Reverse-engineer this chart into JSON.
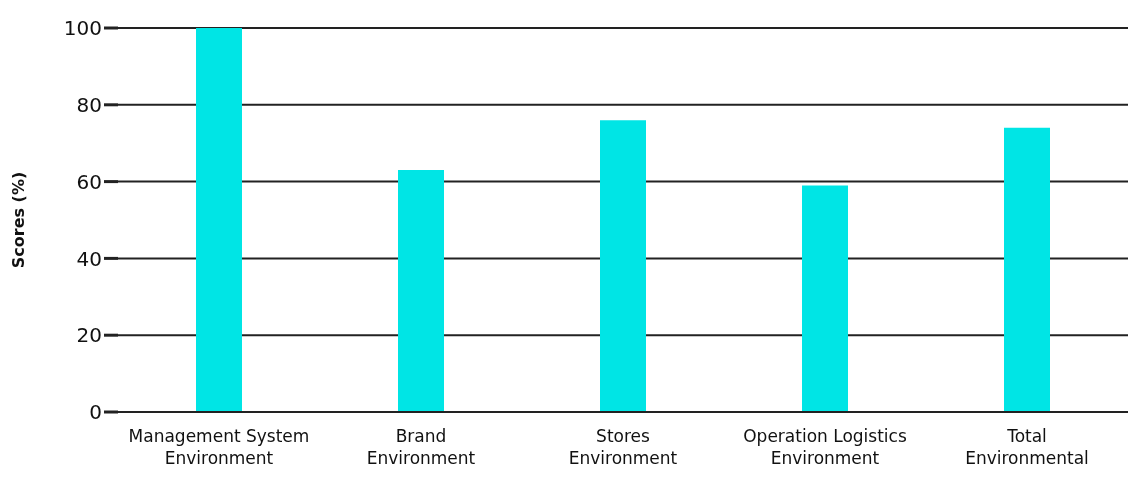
{
  "chart_data": {
    "type": "bar",
    "ylabel": "Scores (%)",
    "categories": [
      "Management System Environment",
      "Brand Environment",
      "Stores Environment",
      "Operation Logistics Environment",
      "Total Environmental"
    ],
    "values": [
      100,
      63,
      76,
      59,
      74
    ],
    "color": "#00e5e5",
    "ylim": [
      0,
      100
    ],
    "yticks": [
      0,
      20,
      40,
      60,
      80,
      100
    ],
    "grid": "y"
  }
}
